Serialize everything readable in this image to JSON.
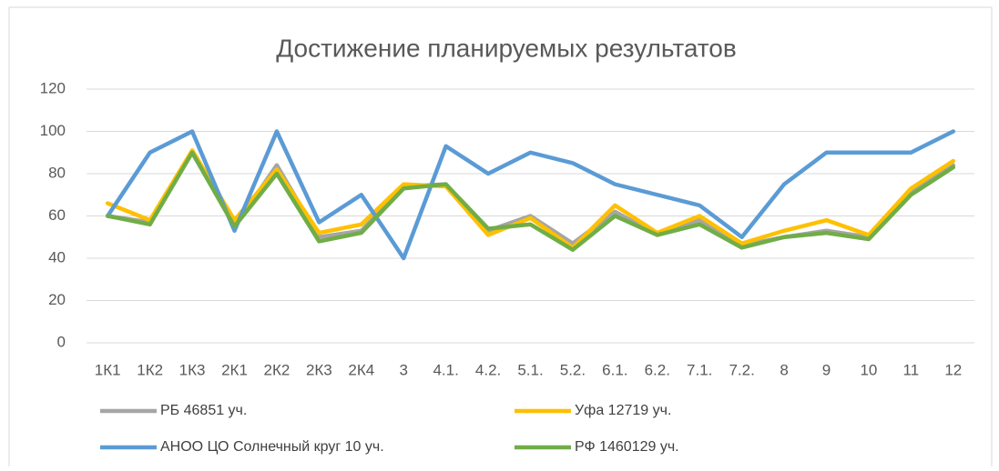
{
  "chart_data": {
    "type": "line",
    "title": "Достижение планируемых результатов",
    "categories": [
      "1К1",
      "1К2",
      "1К3",
      "2К1",
      "2К2",
      "2К3",
      "2К4",
      "3",
      "4.1.",
      "4.2.",
      "5.1.",
      "5.2.",
      "6.1.",
      "6.2.",
      "7.1.",
      "7.2.",
      "8",
      "9",
      "10",
      "11",
      "12"
    ],
    "series": [
      {
        "name": "РБ 46851 уч.",
        "color": "#a5a5a5",
        "values": [
          60,
          57,
          90,
          55,
          84,
          50,
          53,
          74,
          75,
          53,
          60,
          47,
          62,
          51,
          58,
          46,
          50,
          53,
          50,
          71,
          84
        ]
      },
      {
        "name": "Уфа 12719 уч.",
        "color": "#ffc000",
        "values": [
          66,
          58,
          91,
          58,
          82,
          52,
          56,
          75,
          74,
          51,
          59,
          45,
          65,
          52,
          60,
          47,
          53,
          58,
          51,
          73,
          86
        ]
      },
      {
        "name": "АНОО ЦО Солнечный круг 10 уч.",
        "color": "#5b9bd5",
        "values": [
          60,
          90,
          100,
          53,
          100,
          57,
          70,
          40,
          93,
          80,
          90,
          85,
          75,
          70,
          65,
          50,
          75,
          90,
          90,
          90,
          100
        ]
      },
      {
        "name": "РФ 1460129 уч.",
        "color": "#70ad47",
        "values": [
          60,
          56,
          90,
          55,
          80,
          48,
          52,
          73,
          75,
          54,
          56,
          44,
          60,
          51,
          56,
          45,
          50,
          52,
          49,
          70,
          83
        ]
      }
    ],
    "ylim": [
      0,
      120
    ],
    "yticks": [
      0,
      20,
      40,
      60,
      80,
      100,
      120
    ],
    "grid": true,
    "legend": "bottom"
  }
}
